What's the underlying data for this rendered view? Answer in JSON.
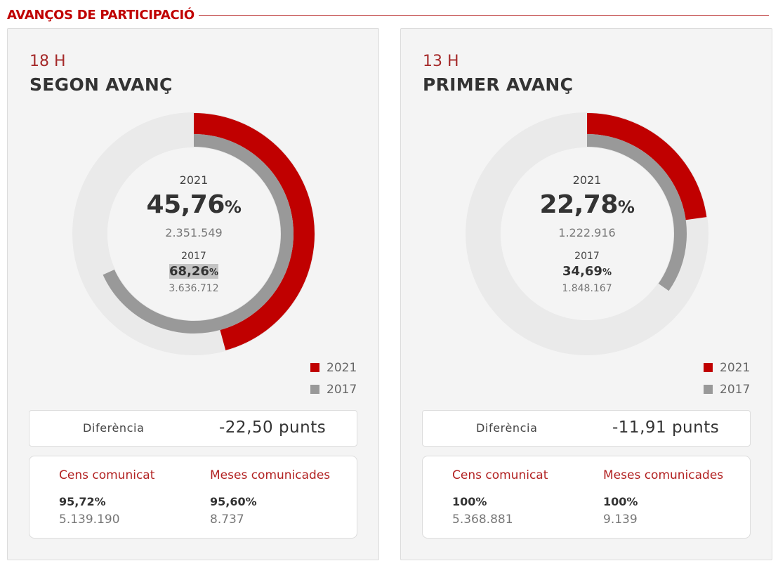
{
  "header": {
    "title": "AVANÇOS DE PARTICIPACIÓ"
  },
  "colors": {
    "accent": "#c00000",
    "series_2021": "#c00000",
    "series_2017": "#999999",
    "track": "#eaeaea"
  },
  "panels": [
    {
      "hour": "18 H",
      "title": "SEGON AVANÇ",
      "center": {
        "year_2021": "2021",
        "pct_2021": "45,76",
        "pct_unit": "%",
        "count_2021": "2.351.549",
        "year_2017": "2017",
        "pct_2017": "68,26",
        "count_2017": "3.636.712"
      },
      "legend": [
        "2021",
        "2017"
      ],
      "difference": {
        "label": "Diferència",
        "value": "-22,50 punts"
      },
      "stats": {
        "cens_label": "Cens comunicat",
        "cens_pct": "95,72%",
        "cens_value": "5.139.190",
        "meses_label": "Meses comunicades",
        "meses_pct": "95,60%",
        "meses_value": "8.737"
      }
    },
    {
      "hour": "13 H",
      "title": "PRIMER AVANÇ",
      "center": {
        "year_2021": "2021",
        "pct_2021": "22,78",
        "pct_unit": "%",
        "count_2021": "1.222.916",
        "year_2017": "2017",
        "pct_2017": "34,69",
        "count_2017": "1.848.167"
      },
      "legend": [
        "2021",
        "2017"
      ],
      "difference": {
        "label": "Diferència",
        "value": "-11,91 punts"
      },
      "stats": {
        "cens_label": "Cens comunicat",
        "cens_pct": "100%",
        "cens_value": "5.368.881",
        "meses_label": "Meses comunicades",
        "meses_pct": "100%",
        "meses_value": "9.139"
      }
    }
  ],
  "chart_data": [
    {
      "type": "pie",
      "categories": [
        "2021",
        "2017"
      ],
      "values": [
        45.76,
        68.26
      ],
      "ylim": [
        0,
        100
      ]
    },
    {
      "type": "pie",
      "categories": [
        "2021",
        "2017"
      ],
      "values": [
        22.78,
        34.69
      ],
      "ylim": [
        0,
        100
      ]
    }
  ]
}
